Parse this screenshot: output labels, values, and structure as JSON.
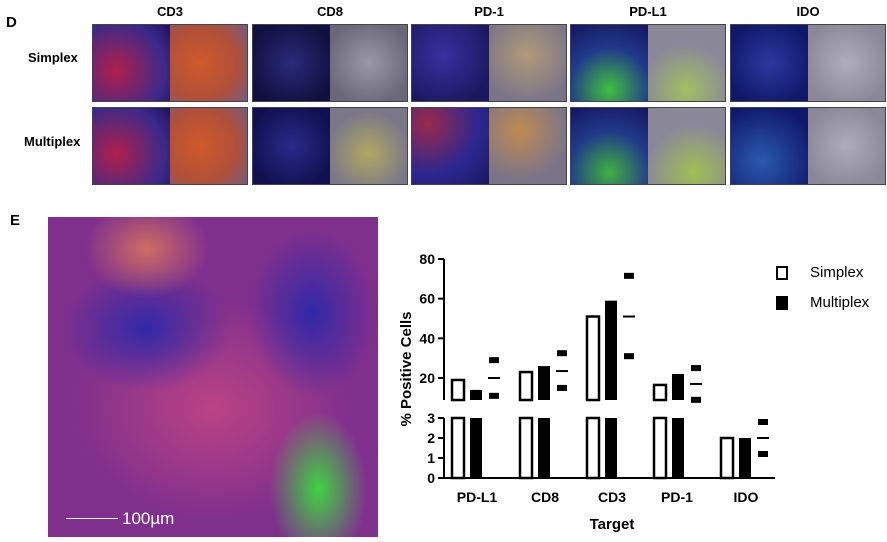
{
  "panel_d": {
    "letter": "D",
    "columns": [
      "CD3",
      "CD8",
      "PD-1",
      "PD-L1",
      "IDO"
    ],
    "rows": [
      "Simplex",
      "Multiplex"
    ]
  },
  "panel_e": {
    "letter": "E",
    "scale_bar_label": "100µm"
  },
  "chart_data": {
    "type": "bar",
    "xlabel": "Target",
    "ylabel": "% Positive Cells",
    "categories": [
      "PD-L1",
      "CD8",
      "CD3",
      "PD-1",
      "IDO"
    ],
    "series": [
      {
        "name": "Simplex",
        "values": [
          19,
          23,
          51,
          16.5,
          2
        ]
      },
      {
        "name": "Multiplex",
        "values": [
          14,
          26,
          59,
          22,
          2
        ]
      }
    ],
    "error_marks": [
      {
        "category": "PD-L1",
        "mean": 20,
        "upper": 29,
        "lower": 11
      },
      {
        "category": "CD8",
        "mean": 23.5,
        "upper": 32.5,
        "lower": 15
      },
      {
        "category": "CD3",
        "mean": 51,
        "upper": 71.5,
        "lower": 31
      },
      {
        "category": "PD-1",
        "mean": 17,
        "upper": 25,
        "lower": 9
      },
      {
        "category": "IDO",
        "mean": 2,
        "upper": 2.8,
        "lower": 1.2
      }
    ],
    "y_axis_break": {
      "upper_segment": {
        "range": [
          3,
          80
        ],
        "ticks": [
          20,
          40,
          60,
          80
        ]
      },
      "lower_segment": {
        "range": [
          0,
          3
        ],
        "ticks": [
          0,
          1,
          2,
          3
        ]
      }
    },
    "legend": {
      "position": "top-right",
      "entries": [
        "Simplex",
        "Multiplex"
      ]
    },
    "colors": {
      "simplex_fill": "#ffffff",
      "multiplex_fill": "#000000",
      "stroke": "#000000"
    }
  }
}
